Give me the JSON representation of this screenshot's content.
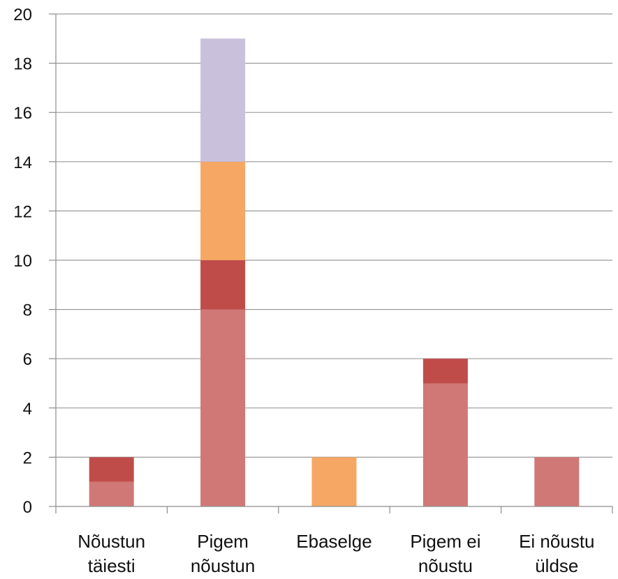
{
  "chart_data": {
    "type": "bar",
    "stacked": true,
    "title": "",
    "xlabel": "",
    "ylabel": "",
    "ylim": [
      0,
      20
    ],
    "yticks": [
      0,
      2,
      4,
      6,
      8,
      10,
      12,
      14,
      16,
      18,
      20
    ],
    "grid": true,
    "legend": "none",
    "categories": [
      [
        "Nõustun",
        "täiesti"
      ],
      [
        "Pigem",
        "nõustun"
      ],
      [
        "Ebaselge"
      ],
      [
        "Pigem ei",
        "nõustu"
      ],
      [
        "Ei nõustu",
        "üldse"
      ]
    ],
    "series": [
      {
        "values": [
          1,
          8,
          0,
          5,
          2
        ],
        "color": "#d07876"
      },
      {
        "values": [
          1,
          2,
          0,
          1,
          0
        ],
        "color": "#c04c4a"
      },
      {
        "values": [
          0,
          4,
          2,
          0,
          0
        ],
        "color": "#f5a763"
      },
      {
        "values": [
          0,
          5,
          0,
          0,
          0
        ],
        "color": "#c9c0dc"
      }
    ],
    "grid_color": "#9a9a9a",
    "axis_color": "#8c8c8c"
  }
}
